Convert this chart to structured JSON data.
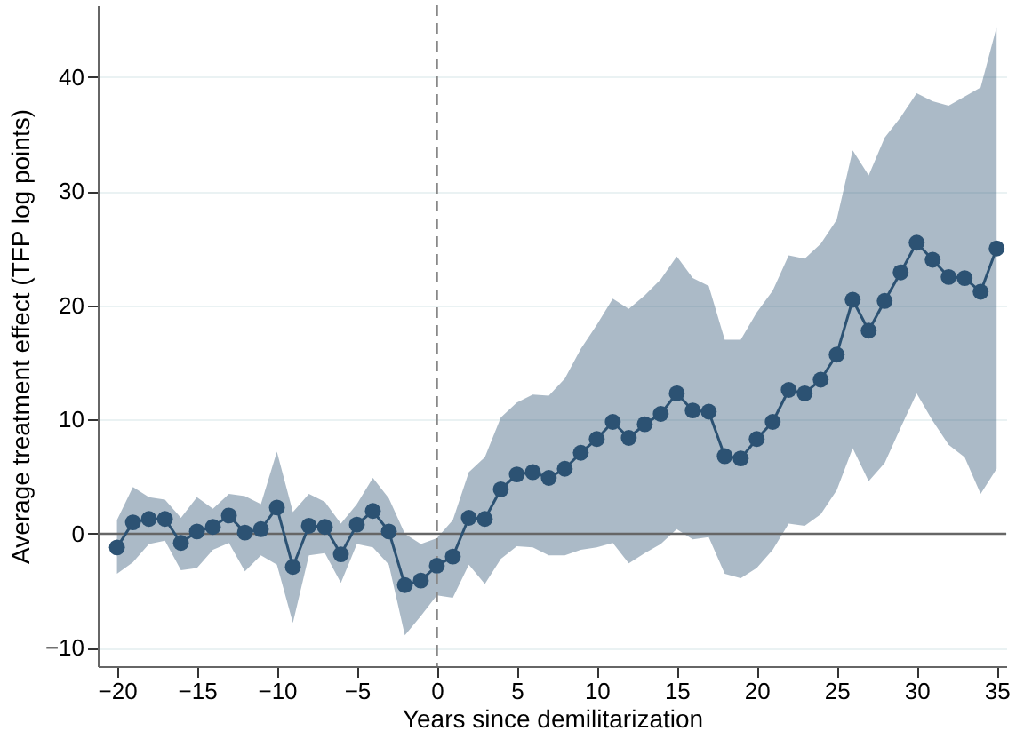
{
  "chart_data": {
    "type": "line",
    "xlabel": "Years since demilitarization",
    "ylabel": "Average treatment effect (TFP log points)",
    "x": [
      -20,
      -19,
      -18,
      -17,
      -16,
      -15,
      -14,
      -13,
      -12,
      -11,
      -10,
      -9,
      -8,
      -7,
      -6,
      -5,
      -4,
      -3,
      -2,
      -1,
      0,
      1,
      2,
      3,
      4,
      5,
      6,
      7,
      8,
      9,
      10,
      11,
      12,
      13,
      14,
      15,
      16,
      17,
      18,
      19,
      20,
      21,
      22,
      23,
      24,
      25,
      26,
      27,
      28,
      29,
      30,
      31,
      32,
      33,
      34,
      35
    ],
    "series": [
      {
        "color": "#2c5273",
        "values": [
          -1.2,
          1.0,
          1.3,
          1.3,
          -0.8,
          0.2,
          0.6,
          1.6,
          0.1,
          0.4,
          2.3,
          -2.9,
          0.7,
          0.6,
          -1.8,
          0.8,
          2.0,
          0.2,
          -4.5,
          -4.1,
          -2.8,
          -2.0,
          1.4,
          1.3,
          3.9,
          5.2,
          5.4,
          4.9,
          5.7,
          7.1,
          8.3,
          9.8,
          8.4,
          9.6,
          10.5,
          12.3,
          10.8,
          10.7,
          6.8,
          6.6,
          8.3,
          9.8,
          12.6,
          12.3,
          13.5,
          15.7,
          20.5,
          17.8,
          20.4,
          22.9,
          25.5,
          24.0,
          22.5,
          22.4,
          21.2,
          25.0
        ],
        "lower": [
          -3.5,
          -2.5,
          -0.9,
          -0.6,
          -3.2,
          -3.0,
          -1.4,
          -0.8,
          -3.3,
          -1.9,
          -2.7,
          -7.8,
          -1.9,
          -1.7,
          -4.3,
          -0.9,
          -1.2,
          -2.7,
          -8.9,
          -7.2,
          -5.4,
          -5.6,
          -2.7,
          -4.4,
          -2.2,
          -1.1,
          -1.2,
          -1.9,
          -1.9,
          -1.4,
          -1.2,
          -0.8,
          -2.6,
          -1.7,
          -0.9,
          0.4,
          -0.5,
          -0.3,
          -3.5,
          -3.9,
          -3.0,
          -1.4,
          0.9,
          0.7,
          1.7,
          3.8,
          7.5,
          4.6,
          6.2,
          9.3,
          12.3,
          9.9,
          7.8,
          6.7,
          3.5,
          5.7
        ],
        "upper": [
          1.2,
          4.1,
          3.2,
          3.0,
          1.4,
          3.2,
          2.2,
          3.5,
          3.3,
          2.6,
          7.2,
          1.9,
          3.5,
          2.8,
          0.9,
          2.6,
          4.9,
          3.1,
          0.0,
          -0.9,
          -0.4,
          1.2,
          5.4,
          6.7,
          10.2,
          11.5,
          12.2,
          12.1,
          13.6,
          16.2,
          18.3,
          20.6,
          19.7,
          20.9,
          22.3,
          24.3,
          22.4,
          21.7,
          17.0,
          17.0,
          19.4,
          21.3,
          24.4,
          24.1,
          25.4,
          27.5,
          33.6,
          31.4,
          34.7,
          36.5,
          38.6,
          37.9,
          37.5,
          38.3,
          39.1,
          44.4
        ]
      }
    ],
    "xlim": [
      -21.2,
      35.6
    ],
    "ylim": [
      -11.6,
      46.3
    ],
    "xticks": [
      -20,
      -15,
      -10,
      -5,
      0,
      5,
      10,
      15,
      20,
      25,
      30,
      35
    ],
    "yticks": [
      -10,
      0,
      10,
      20,
      30,
      40
    ],
    "grid": "y",
    "marker": "circle",
    "line_style": "solid",
    "ref_lines": [
      {
        "axis": "x",
        "value": 0,
        "color": "#888888",
        "line_style": "dashed"
      },
      {
        "axis": "y",
        "value": 0,
        "color": "#666666",
        "line_style": "solid"
      }
    ]
  }
}
